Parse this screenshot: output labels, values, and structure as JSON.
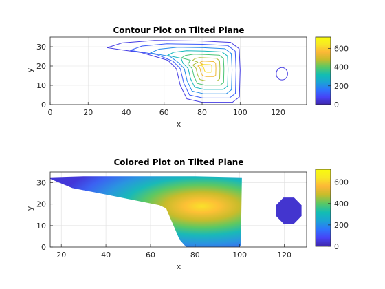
{
  "charts": [
    {
      "title": "Contour Plot on Tilted Plane",
      "xlabel": "x",
      "ylabel": "y",
      "colorbar_ticks": [
        "0",
        "200",
        "400",
        "600"
      ]
    },
    {
      "title": "Colored Plot on Tilted Plane",
      "xlabel": "x",
      "ylabel": "y",
      "colorbar_ticks": [
        "0",
        "200",
        "400",
        "600"
      ]
    }
  ],
  "colormap": [
    "#3e26a8",
    "#4743f6",
    "#2e74fc",
    "#1ba3d5",
    "#12bdb3",
    "#5dc862",
    "#c8bc2b",
    "#fdb737",
    "#f7e825",
    "#f9fb0e"
  ],
  "chart_data": [
    {
      "type": "contour",
      "title": "Contour Plot on Tilted Plane",
      "xlabel": "x",
      "ylabel": "y",
      "xlim": [
        0,
        135
      ],
      "ylim": [
        0,
        35
      ],
      "xticks": [
        0,
        20,
        40,
        60,
        80,
        100,
        120
      ],
      "yticks": [
        0,
        10,
        20,
        30
      ],
      "colorbar": {
        "range": [
          0,
          720
        ],
        "ticks": [
          0,
          200,
          400,
          600
        ]
      },
      "peak": {
        "x": 83,
        "y": 19
      },
      "levels": [
        60,
        120,
        200,
        300,
        380,
        460,
        540,
        620
      ],
      "isolated_region": {
        "x": 122,
        "y": 16,
        "level": 60
      }
    },
    {
      "type": "heatmap",
      "title": "Colored Plot on Tilted Plane",
      "xlabel": "x",
      "ylabel": "y",
      "xlim": [
        15,
        130
      ],
      "ylim": [
        0,
        35
      ],
      "xticks": [
        20,
        40,
        60,
        80,
        100,
        120
      ],
      "yticks": [
        0,
        10,
        20,
        30
      ],
      "colorbar": {
        "range": [
          0,
          720
        ],
        "ticks": [
          0,
          200,
          400,
          600
        ]
      },
      "peak": {
        "x": 83,
        "y": 19,
        "value": 680
      },
      "isolated_region": {
        "x": 122,
        "y": 17,
        "value": 40
      }
    }
  ]
}
